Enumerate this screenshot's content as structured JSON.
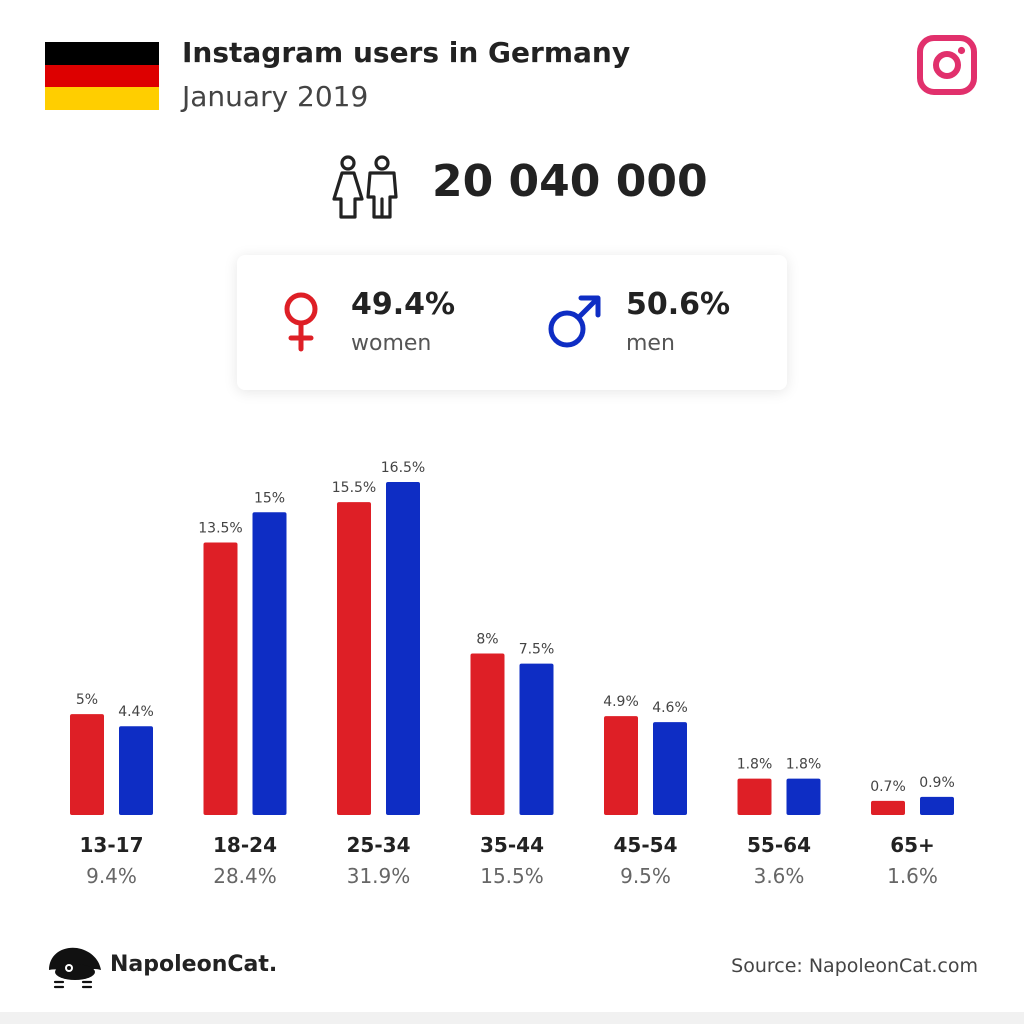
{
  "header": {
    "title": "Instagram users in Germany",
    "subtitle": "January 2019",
    "flag_colors": [
      "#000000",
      "#dd0000",
      "#ffce00"
    ],
    "brand_icon": "instagram-icon",
    "brand_icon_color": "#e1306c"
  },
  "summary": {
    "total_users": "20 040 000",
    "icon": "people-icon"
  },
  "gender": {
    "women": {
      "percent": "49.4%",
      "label": "women",
      "color": "#de1f26",
      "icon": "female-icon"
    },
    "men": {
      "percent": "50.6%",
      "label": "men",
      "color": "#0e2dc4",
      "icon": "male-icon"
    }
  },
  "chart_data": {
    "type": "bar",
    "categories": [
      "13-17",
      "18-24",
      "25-34",
      "35-44",
      "45-54",
      "55-64",
      "65+"
    ],
    "category_totals": [
      "9.4%",
      "28.4%",
      "31.9%",
      "15.5%",
      "9.5%",
      "3.6%",
      "1.6%"
    ],
    "series": [
      {
        "values": [
          5,
          13.5,
          15.5,
          8,
          4.9,
          1.8,
          0.7
        ],
        "labels": [
          "5%",
          "13.5%",
          "15.5%",
          "8%",
          "4.9%",
          "1.8%",
          "0.7%"
        ],
        "color": "#de1f26"
      },
      {
        "values": [
          4.4,
          15,
          16.5,
          7.5,
          4.6,
          1.8,
          0.9
        ],
        "labels": [
          "4.4%",
          "15%",
          "16.5%",
          "7.5%",
          "4.6%",
          "1.8%",
          "0.9%"
        ],
        "color": "#0e2dc4"
      }
    ],
    "ylim": [
      0,
      16.5
    ],
    "grid": false,
    "legend": "none"
  },
  "footer": {
    "brand": "NapoleonCat.",
    "source": "Source: NapoleonCat.com",
    "logo_icon": "napoleoncat-logo-icon"
  }
}
